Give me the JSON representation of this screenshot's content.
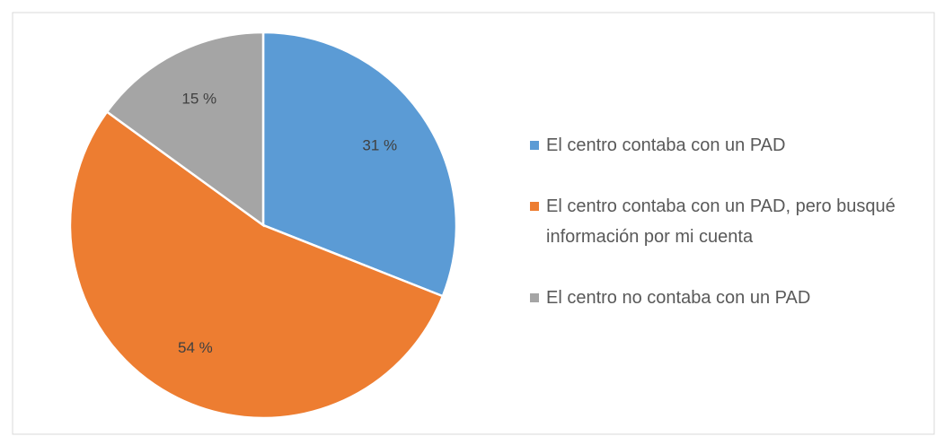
{
  "chart_data": {
    "type": "pie",
    "categories": [
      "El centro contaba con un PAD",
      "El centro contaba con un PAD, pero busqué información por mi cuenta",
      "El centro no contaba con un PAD"
    ],
    "values": [
      31,
      54,
      15
    ],
    "value_labels": [
      "31 %",
      "54 %",
      "15 %"
    ],
    "colors": [
      "#5b9bd5",
      "#ed7d31",
      "#a5a5a5"
    ],
    "legend": "right"
  }
}
